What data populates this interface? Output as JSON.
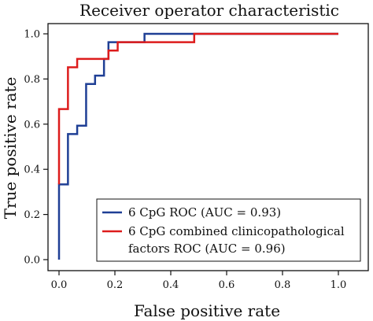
{
  "chart_data": {
    "type": "line",
    "title": "Receiver operator characteristic",
    "xlabel": "False positive rate",
    "ylabel": "True positive rate",
    "xlim": [
      0,
      1
    ],
    "ylim": [
      0,
      1
    ],
    "xticks": [
      "0.0",
      "0.2",
      "0.4",
      "0.6",
      "0.8",
      "1.0"
    ],
    "yticks": [
      "0.0",
      "0.2",
      "0.4",
      "0.6",
      "0.8",
      "1.0"
    ],
    "grid": false,
    "legend_position": "bottom-right",
    "series": [
      {
        "name": "6 CpG ROC (AUC = 0.93)",
        "color": "#1f3f95",
        "points": [
          [
            0,
            0
          ],
          [
            0,
            0.333
          ],
          [
            0.032,
            0.333
          ],
          [
            0.032,
            0.556
          ],
          [
            0.065,
            0.556
          ],
          [
            0.065,
            0.593
          ],
          [
            0.097,
            0.593
          ],
          [
            0.097,
            0.778
          ],
          [
            0.129,
            0.778
          ],
          [
            0.129,
            0.815
          ],
          [
            0.161,
            0.815
          ],
          [
            0.161,
            0.889
          ],
          [
            0.177,
            0.889
          ],
          [
            0.177,
            0.963
          ],
          [
            0.306,
            0.963
          ],
          [
            0.306,
            1
          ],
          [
            1,
            1
          ]
        ]
      },
      {
        "name": "6 CpG combined clinicopathological factors ROC (AUC = 0.96)",
        "name_lines": [
          "6 CpG combined clinicopathological",
          "factors ROC (AUC = 0.96)"
        ],
        "color": "#dd1c1c",
        "points": [
          [
            0,
            0.333
          ],
          [
            0,
            0.667
          ],
          [
            0.032,
            0.667
          ],
          [
            0.032,
            0.852
          ],
          [
            0.065,
            0.852
          ],
          [
            0.065,
            0.889
          ],
          [
            0.177,
            0.889
          ],
          [
            0.177,
            0.926
          ],
          [
            0.21,
            0.926
          ],
          [
            0.21,
            0.963
          ],
          [
            0.484,
            0.963
          ],
          [
            0.484,
            1
          ],
          [
            1,
            1
          ]
        ]
      }
    ]
  }
}
